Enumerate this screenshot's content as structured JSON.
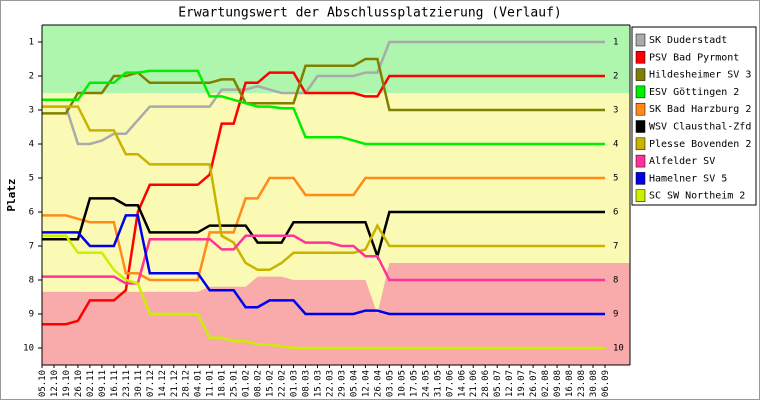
{
  "chart_data": {
    "type": "line",
    "title": "Erwartungswert der Abschlussplatzierung (Verlauf)",
    "y_label": "Platz",
    "categories": [
      "05.10",
      "12.10",
      "19.10",
      "26.10",
      "02.11",
      "09.11",
      "16.11",
      "23.11",
      "30.11",
      "07.12",
      "14.12",
      "21.12",
      "28.12",
      "04.01",
      "11.01",
      "18.01",
      "25.01",
      "01.02",
      "08.02",
      "15.02",
      "22.02",
      "01.03",
      "08.03",
      "15.03",
      "22.03",
      "29.03",
      "05.04",
      "12.04",
      "26.04",
      "03.05",
      "10.05",
      "17.05",
      "24.05",
      "31.05",
      "07.06",
      "14.06",
      "21.06",
      "28.06",
      "05.07",
      "12.07",
      "19.07",
      "26.07",
      "02.08",
      "09.08",
      "16.08",
      "23.08",
      "30.08",
      "06.09"
    ],
    "ylim": [
      0.5,
      10.5
    ],
    "y_inverted": true,
    "yticks": [
      1,
      2,
      3,
      4,
      5,
      6,
      7,
      8,
      9,
      10
    ],
    "zones": {
      "promotion_color": "#aef5ae",
      "middle_color": "#fafab4",
      "relegation_color": "#f9aaaa",
      "promotion_limit": 2.5,
      "relegation_limit": [
        8.35,
        8.35,
        8.35,
        8.35,
        8.35,
        8.35,
        8.35,
        8.35,
        8.35,
        8.35,
        8.35,
        8.35,
        8.35,
        8.35,
        8.2,
        8.2,
        8.2,
        8.2,
        7.9,
        7.9,
        7.9,
        8.0,
        8.0,
        8.0,
        8.0,
        8.0,
        8.0,
        8.0,
        9.0,
        7.5,
        7.5,
        7.5,
        7.5,
        7.5,
        7.5,
        7.5,
        7.5,
        7.5,
        7.5,
        7.5,
        7.5,
        7.5,
        7.5,
        7.5,
        7.5,
        7.5,
        7.5,
        7.5
      ]
    },
    "series": [
      {
        "name": "SK Duderstadt",
        "color": "#aaaaaa",
        "values": [
          2.9,
          2.9,
          2.9,
          4.0,
          4.0,
          3.9,
          3.7,
          3.7,
          3.3,
          2.9,
          2.9,
          2.9,
          2.9,
          2.9,
          2.9,
          2.4,
          2.4,
          2.4,
          2.3,
          2.4,
          2.5,
          2.5,
          2.5,
          2.0,
          2.0,
          2.0,
          2.0,
          1.9,
          1.9,
          1.0,
          1.0,
          1.0,
          1.0,
          1.0,
          1.0,
          1.0,
          1.0,
          1.0,
          1.0,
          1.0,
          1.0,
          1.0,
          1.0,
          1.0,
          1.0,
          1.0,
          1.0,
          1.0
        ]
      },
      {
        "name": "PSV Bad Pyrmont",
        "color": "#ff0000",
        "values": [
          9.3,
          9.3,
          9.3,
          9.2,
          8.6,
          8.6,
          8.6,
          8.3,
          6.0,
          5.2,
          5.2,
          5.2,
          5.2,
          5.2,
          4.9,
          3.4,
          3.4,
          2.2,
          2.2,
          1.9,
          1.9,
          1.9,
          2.5,
          2.5,
          2.5,
          2.5,
          2.5,
          2.6,
          2.6,
          2.0,
          2.0,
          2.0,
          2.0,
          2.0,
          2.0,
          2.0,
          2.0,
          2.0,
          2.0,
          2.0,
          2.0,
          2.0,
          2.0,
          2.0,
          2.0,
          2.0,
          2.0,
          2.0
        ]
      },
      {
        "name": "Hildesheimer SV 3",
        "color": "#808000",
        "values": [
          3.1,
          3.1,
          3.1,
          2.5,
          2.5,
          2.5,
          2.0,
          2.0,
          1.9,
          2.2,
          2.2,
          2.2,
          2.2,
          2.2,
          2.2,
          2.1,
          2.1,
          2.8,
          2.8,
          2.8,
          2.8,
          2.8,
          1.7,
          1.7,
          1.7,
          1.7,
          1.7,
          1.5,
          1.5,
          3.0,
          3.0,
          3.0,
          3.0,
          3.0,
          3.0,
          3.0,
          3.0,
          3.0,
          3.0,
          3.0,
          3.0,
          3.0,
          3.0,
          3.0,
          3.0,
          3.0,
          3.0,
          3.0
        ]
      },
      {
        "name": "ESV Göttingen 2",
        "color": "#00ee00",
        "values": [
          2.7,
          2.7,
          2.7,
          2.7,
          2.2,
          2.2,
          2.2,
          1.9,
          1.9,
          1.85,
          1.85,
          1.85,
          1.85,
          1.85,
          2.6,
          2.6,
          2.7,
          2.8,
          2.9,
          2.9,
          2.95,
          2.95,
          3.8,
          3.8,
          3.8,
          3.8,
          3.9,
          4.0,
          4.0,
          4.0,
          4.0,
          4.0,
          4.0,
          4.0,
          4.0,
          4.0,
          4.0,
          4.0,
          4.0,
          4.0,
          4.0,
          4.0,
          4.0,
          4.0,
          4.0,
          4.0,
          4.0,
          4.0
        ]
      },
      {
        "name": "SK Bad Harzburg 2",
        "color": "#ff8c1a",
        "values": [
          6.1,
          6.1,
          6.1,
          6.2,
          6.3,
          6.3,
          6.3,
          7.8,
          7.8,
          8.0,
          8.0,
          8.0,
          8.0,
          8.0,
          6.6,
          6.6,
          6.6,
          5.6,
          5.6,
          5.0,
          5.0,
          5.0,
          5.5,
          5.5,
          5.5,
          5.5,
          5.5,
          5.0,
          5.0,
          5.0,
          5.0,
          5.0,
          5.0,
          5.0,
          5.0,
          5.0,
          5.0,
          5.0,
          5.0,
          5.0,
          5.0,
          5.0,
          5.0,
          5.0,
          5.0,
          5.0,
          5.0,
          5.0
        ]
      },
      {
        "name": "WSV Clausthal-Zfd",
        "color": "#000000",
        "values": [
          6.8,
          6.8,
          6.8,
          6.8,
          5.6,
          5.6,
          5.6,
          5.8,
          5.8,
          6.6,
          6.6,
          6.6,
          6.6,
          6.6,
          6.4,
          6.4,
          6.4,
          6.4,
          6.9,
          6.9,
          6.9,
          6.3,
          6.3,
          6.3,
          6.3,
          6.3,
          6.3,
          6.3,
          7.3,
          6.0,
          6.0,
          6.0,
          6.0,
          6.0,
          6.0,
          6.0,
          6.0,
          6.0,
          6.0,
          6.0,
          6.0,
          6.0,
          6.0,
          6.0,
          6.0,
          6.0,
          6.0,
          6.0
        ]
      },
      {
        "name": "Plesse Bovenden 2",
        "color": "#c8b400",
        "values": [
          2.9,
          2.9,
          2.9,
          2.9,
          3.6,
          3.6,
          3.6,
          4.3,
          4.3,
          4.6,
          4.6,
          4.6,
          4.6,
          4.6,
          4.6,
          6.7,
          6.9,
          7.5,
          7.7,
          7.7,
          7.5,
          7.2,
          7.2,
          7.2,
          7.2,
          7.2,
          7.2,
          7.1,
          6.4,
          7.0,
          7.0,
          7.0,
          7.0,
          7.0,
          7.0,
          7.0,
          7.0,
          7.0,
          7.0,
          7.0,
          7.0,
          7.0,
          7.0,
          7.0,
          7.0,
          7.0,
          7.0,
          7.0
        ]
      },
      {
        "name": "Alfelder SV",
        "color": "#ff3399",
        "values": [
          7.9,
          7.9,
          7.9,
          7.9,
          7.9,
          7.9,
          7.9,
          8.1,
          8.1,
          6.8,
          6.8,
          6.8,
          6.8,
          6.8,
          6.8,
          7.1,
          7.1,
          6.7,
          6.7,
          6.7,
          6.7,
          6.7,
          6.9,
          6.9,
          6.9,
          7.0,
          7.0,
          7.3,
          7.3,
          8.0,
          8.0,
          8.0,
          8.0,
          8.0,
          8.0,
          8.0,
          8.0,
          8.0,
          8.0,
          8.0,
          8.0,
          8.0,
          8.0,
          8.0,
          8.0,
          8.0,
          8.0,
          8.0
        ]
      },
      {
        "name": "Hamelner SV 5",
        "color": "#0000ee",
        "values": [
          6.6,
          6.6,
          6.6,
          6.6,
          7.0,
          7.0,
          7.0,
          6.1,
          6.1,
          7.8,
          7.8,
          7.8,
          7.8,
          7.8,
          8.3,
          8.3,
          8.3,
          8.8,
          8.8,
          8.6,
          8.6,
          8.6,
          9.0,
          9.0,
          9.0,
          9.0,
          9.0,
          8.9,
          8.9,
          9.0,
          9.0,
          9.0,
          9.0,
          9.0,
          9.0,
          9.0,
          9.0,
          9.0,
          9.0,
          9.0,
          9.0,
          9.0,
          9.0,
          9.0,
          9.0,
          9.0,
          9.0,
          9.0
        ]
      },
      {
        "name": "SC SW Northeim 2",
        "color": "#ccee00",
        "values": [
          6.7,
          6.7,
          6.7,
          7.2,
          7.2,
          7.2,
          7.7,
          8.0,
          8.1,
          9.0,
          9.0,
          9.0,
          9.0,
          9.0,
          9.7,
          9.7,
          9.8,
          9.8,
          9.9,
          9.9,
          9.95,
          10,
          10,
          10,
          10,
          10,
          10,
          10,
          10,
          10,
          10,
          10,
          10,
          10,
          10,
          10,
          10,
          10,
          10,
          10,
          10,
          10,
          10,
          10,
          10,
          10,
          10,
          10
        ]
      }
    ]
  }
}
